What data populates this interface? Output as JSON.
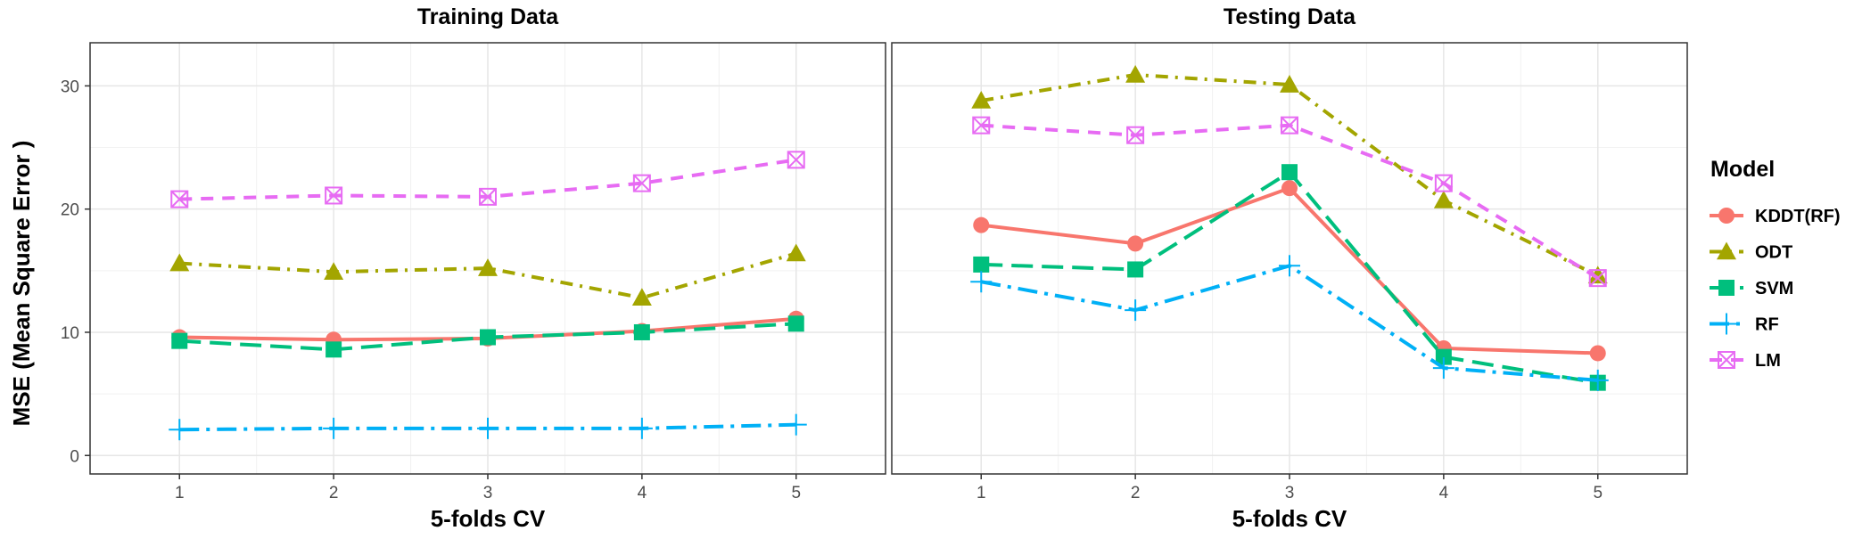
{
  "chart_data": {
    "type": "line",
    "y_axis_title": "MSE (Mean Square Error )",
    "x_axis_title": "5-folds CV",
    "x": [
      1,
      2,
      3,
      4,
      5
    ],
    "x_tick_labels": [
      "1",
      "2",
      "3",
      "4",
      "5"
    ],
    "y_ticks": [
      0,
      10,
      20,
      30
    ],
    "y_tick_labels": [
      "0",
      "10",
      "20",
      "30"
    ],
    "ylim": [
      -1.5,
      33.5
    ],
    "xlim": [
      0.42,
      5.58
    ],
    "grid": true,
    "legend": {
      "title": "Model",
      "position": "right",
      "entries": [
        "KDDT(RF)",
        "ODT",
        "SVM",
        "RF",
        "LM"
      ]
    },
    "series_styles": {
      "KDDT(RF)": {
        "color": "#F8766D",
        "dash": "",
        "marker": "circle"
      },
      "ODT": {
        "color": "#A3A500",
        "dash": "14 8 3 8",
        "marker": "triangle"
      },
      "SVM": {
        "color": "#00BF7D",
        "dash": "24 10",
        "marker": "square"
      },
      "RF": {
        "color": "#00B0F6",
        "dash": "22 8 4 8",
        "marker": "plus"
      },
      "LM": {
        "color": "#E76BF3",
        "dash": "14 10",
        "marker": "square-x"
      }
    },
    "panels": [
      {
        "title": "Training Data",
        "series": [
          {
            "name": "KDDT(RF)",
            "values": [
              9.6,
              9.4,
              9.5,
              10.1,
              11.1
            ]
          },
          {
            "name": "ODT",
            "values": [
              15.6,
              14.9,
              15.2,
              12.8,
              16.4
            ]
          },
          {
            "name": "SVM",
            "values": [
              9.3,
              8.6,
              9.6,
              10.0,
              10.7
            ]
          },
          {
            "name": "RF",
            "values": [
              2.1,
              2.2,
              2.2,
              2.2,
              2.5
            ]
          },
          {
            "name": "LM",
            "values": [
              20.8,
              21.1,
              21.0,
              22.1,
              24.0
            ]
          }
        ]
      },
      {
        "title": "Testing Data",
        "series": [
          {
            "name": "KDDT(RF)",
            "values": [
              18.7,
              17.2,
              21.7,
              8.7,
              8.3
            ]
          },
          {
            "name": "ODT",
            "values": [
              28.8,
              30.9,
              30.1,
              20.7,
              14.6
            ]
          },
          {
            "name": "SVM",
            "values": [
              15.5,
              15.1,
              23.0,
              8.0,
              5.9
            ]
          },
          {
            "name": "RF",
            "values": [
              14.1,
              11.8,
              15.4,
              7.1,
              6.1
            ]
          },
          {
            "name": "LM",
            "values": [
              26.8,
              26.0,
              26.8,
              22.1,
              14.4
            ]
          }
        ]
      }
    ]
  }
}
